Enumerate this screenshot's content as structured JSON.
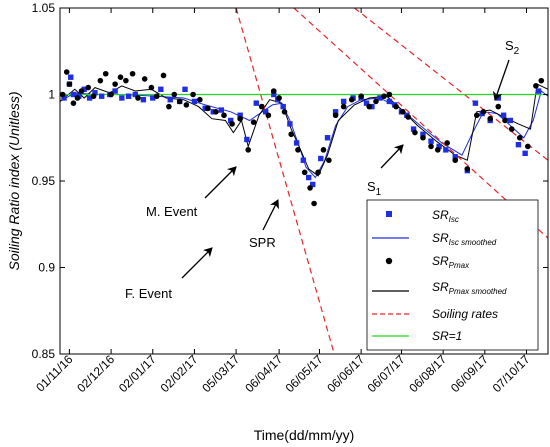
{
  "chart_data": {
    "type": "line",
    "xlabel": "Time(dd/mm/yy)",
    "ylabel": "Soiling Ratio index (Unitless)",
    "xlim": [
      "2016-10-25",
      "2017-10-23"
    ],
    "ylim": [
      0.85,
      1.05
    ],
    "x_ticks": [
      {
        "date": "2016-11-01",
        "label": "01/11/16"
      },
      {
        "date": "2016-12-02",
        "label": "02/12/16"
      },
      {
        "date": "2017-01-02",
        "label": "02/01/17"
      },
      {
        "date": "2017-02-02",
        "label": "02/02/17"
      },
      {
        "date": "2017-03-05",
        "label": "05/03/17"
      },
      {
        "date": "2017-04-06",
        "label": "06/04/17"
      },
      {
        "date": "2017-05-06",
        "label": "06/05/17"
      },
      {
        "date": "2017-06-06",
        "label": "06/06/17"
      },
      {
        "date": "2017-07-06",
        "label": "06/07/17"
      },
      {
        "date": "2017-08-06",
        "label": "06/08/17"
      },
      {
        "date": "2017-09-06",
        "label": "06/09/17"
      },
      {
        "date": "2017-10-07",
        "label": "07/10/17"
      }
    ],
    "y_ticks": [
      {
        "value": 0.85,
        "label": "0.85"
      },
      {
        "value": 0.9,
        "label": "0.9"
      },
      {
        "value": 0.95,
        "label": "0.95"
      },
      {
        "value": 1.0,
        "label": "1"
      },
      {
        "value": 1.05,
        "label": "1.05"
      }
    ],
    "grid": false,
    "legend_position": "bottom-right",
    "legend": [
      {
        "main": "SR",
        "sub": "Isc",
        "marker": "blue-square"
      },
      {
        "main": "SR",
        "sub": "Isc smoothed",
        "marker": "blue-line"
      },
      {
        "main": "SR",
        "sub": "Pmax",
        "marker": "black-dot"
      },
      {
        "main": "SR",
        "sub": "Pmax smoothed",
        "marker": "black-line"
      },
      {
        "main": "Soiling rates",
        "sub": "",
        "marker": "red-dashed-line"
      },
      {
        "main": "SR=1",
        "sub": "",
        "marker": "green-line"
      }
    ],
    "series": [
      {
        "name": "SR_Isc",
        "style": "scatter",
        "color": "#1f2fe0",
        "points": [
          [
            "2016-10-28",
            0.998
          ],
          [
            "2016-11-01",
            1.006
          ],
          [
            "2016-11-02",
            1.01
          ],
          [
            "2016-11-04",
            1.0
          ],
          [
            "2016-11-08",
            0.999
          ],
          [
            "2016-11-12",
            1.003
          ],
          [
            "2016-11-16",
            0.998
          ],
          [
            "2016-11-20",
            1.001
          ],
          [
            "2016-11-25",
            0.999
          ],
          [
            "2016-12-01",
            1.0
          ],
          [
            "2016-12-05",
            1.002
          ],
          [
            "2016-12-10",
            0.998
          ],
          [
            "2016-12-15",
            0.999
          ],
          [
            "2016-12-20",
            1.0
          ],
          [
            "2016-12-26",
            0.997
          ],
          [
            "2017-01-02",
            0.998
          ],
          [
            "2017-01-08",
            1.003
          ],
          [
            "2017-01-15",
            0.997
          ],
          [
            "2017-01-22",
            0.996
          ],
          [
            "2017-01-26",
            1.003
          ],
          [
            "2017-02-02",
            0.996
          ],
          [
            "2017-02-10",
            0.992
          ],
          [
            "2017-02-16",
            0.99
          ],
          [
            "2017-02-22",
            0.991
          ],
          [
            "2017-03-01",
            0.985
          ],
          [
            "2017-03-08",
            0.988
          ],
          [
            "2017-03-13",
            0.974
          ],
          [
            "2017-03-20",
            0.995
          ],
          [
            "2017-03-27",
            0.99
          ],
          [
            "2017-04-02",
            1.0
          ],
          [
            "2017-04-05",
            0.997
          ],
          [
            "2017-04-09",
            0.993
          ],
          [
            "2017-04-14",
            0.983
          ],
          [
            "2017-04-19",
            0.972
          ],
          [
            "2017-04-24",
            0.962
          ],
          [
            "2017-04-28",
            0.952
          ],
          [
            "2017-05-01",
            0.948
          ],
          [
            "2017-05-07",
            0.963
          ],
          [
            "2017-05-12",
            0.975
          ],
          [
            "2017-05-18",
            0.99
          ],
          [
            "2017-05-24",
            0.996
          ],
          [
            "2017-05-31",
            0.998
          ],
          [
            "2017-06-06",
            0.998
          ],
          [
            "2017-06-10",
            0.995
          ],
          [
            "2017-06-14",
            0.993
          ],
          [
            "2017-06-20",
            0.998
          ],
          [
            "2017-06-27",
            0.996
          ],
          [
            "2017-07-01",
            0.994
          ],
          [
            "2017-07-06",
            0.99
          ],
          [
            "2017-07-10",
            0.988
          ],
          [
            "2017-07-15",
            0.98
          ],
          [
            "2017-07-22",
            0.977
          ],
          [
            "2017-07-28",
            0.973
          ],
          [
            "2017-08-03",
            0.97
          ],
          [
            "2017-08-08",
            0.968
          ],
          [
            "2017-08-15",
            0.964
          ],
          [
            "2017-08-24",
            0.956
          ],
          [
            "2017-08-30",
            0.995
          ],
          [
            "2017-09-04",
            0.989
          ],
          [
            "2017-09-10",
            0.985
          ],
          [
            "2017-09-16",
            0.998
          ],
          [
            "2017-09-20",
            0.988
          ],
          [
            "2017-09-25",
            0.985
          ],
          [
            "2017-10-01",
            0.971
          ],
          [
            "2017-10-06",
            0.966
          ],
          [
            "2017-10-16",
            1.002
          ]
        ]
      },
      {
        "name": "SR_Isc smoothed",
        "style": "line",
        "color": "#1f2fe0",
        "points": [
          [
            "2016-10-25",
            0.996
          ],
          [
            "2016-11-05",
            1.001
          ],
          [
            "2016-11-20",
            1.0
          ],
          [
            "2016-12-10",
            1.0
          ],
          [
            "2017-01-05",
            0.999
          ],
          [
            "2017-01-25",
            0.998
          ],
          [
            "2017-02-10",
            0.994
          ],
          [
            "2017-03-01",
            0.99
          ],
          [
            "2017-03-15",
            0.985
          ],
          [
            "2017-04-01",
            0.994
          ],
          [
            "2017-04-08",
            0.995
          ],
          [
            "2017-04-14",
            0.985
          ],
          [
            "2017-04-20",
            0.972
          ],
          [
            "2017-04-26",
            0.958
          ],
          [
            "2017-05-03",
            0.952
          ],
          [
            "2017-05-10",
            0.962
          ],
          [
            "2017-05-18",
            0.982
          ],
          [
            "2017-05-27",
            0.993
          ],
          [
            "2017-06-06",
            0.997
          ],
          [
            "2017-06-20",
            0.998
          ],
          [
            "2017-07-05",
            0.992
          ],
          [
            "2017-07-20",
            0.982
          ],
          [
            "2017-08-05",
            0.972
          ],
          [
            "2017-08-20",
            0.965
          ],
          [
            "2017-08-28",
            0.978
          ],
          [
            "2017-09-05",
            0.99
          ],
          [
            "2017-09-15",
            0.989
          ],
          [
            "2017-09-25",
            0.982
          ],
          [
            "2017-10-05",
            0.975
          ],
          [
            "2017-10-12",
            0.985
          ],
          [
            "2017-10-18",
            1.002
          ],
          [
            "2017-10-23",
            0.999
          ]
        ]
      },
      {
        "name": "SR_Pmax",
        "style": "scatter",
        "color": "#000000",
        "points": [
          [
            "2016-10-27",
            1.0
          ],
          [
            "2016-10-30",
            1.013
          ],
          [
            "2016-11-01",
            1.006
          ],
          [
            "2016-11-04",
            0.995
          ],
          [
            "2016-11-07",
            0.998
          ],
          [
            "2016-11-10",
            1.002
          ],
          [
            "2016-11-15",
            1.004
          ],
          [
            "2016-11-19",
            0.999
          ],
          [
            "2016-11-24",
            1.008
          ],
          [
            "2016-11-28",
            1.012
          ],
          [
            "2016-12-02",
            1.0
          ],
          [
            "2016-12-05",
            1.006
          ],
          [
            "2016-12-09",
            1.01
          ],
          [
            "2016-12-13",
            1.008
          ],
          [
            "2016-12-18",
            1.012
          ],
          [
            "2016-12-22",
            0.998
          ],
          [
            "2016-12-27",
            1.009
          ],
          [
            "2017-01-01",
            1.004
          ],
          [
            "2017-01-05",
            0.999
          ],
          [
            "2017-01-10",
            1.011
          ],
          [
            "2017-01-14",
            0.993
          ],
          [
            "2017-01-18",
            1.0
          ],
          [
            "2017-01-22",
            0.996
          ],
          [
            "2017-01-27",
            0.994
          ],
          [
            "2017-02-01",
            1.0
          ],
          [
            "2017-02-06",
            0.997
          ],
          [
            "2017-02-12",
            0.992
          ],
          [
            "2017-02-18",
            0.99
          ],
          [
            "2017-02-24",
            0.988
          ],
          [
            "2017-03-02",
            0.983
          ],
          [
            "2017-03-08",
            0.986
          ],
          [
            "2017-03-14",
            0.968
          ],
          [
            "2017-03-18",
            0.984
          ],
          [
            "2017-03-24",
            0.993
          ],
          [
            "2017-03-29",
            0.988
          ],
          [
            "2017-04-02",
            1.002
          ],
          [
            "2017-04-06",
            0.998
          ],
          [
            "2017-04-10",
            0.99
          ],
          [
            "2017-04-15",
            0.977
          ],
          [
            "2017-04-20",
            0.968
          ],
          [
            "2017-04-25",
            0.955
          ],
          [
            "2017-04-29",
            0.946
          ],
          [
            "2017-05-02",
            0.937
          ],
          [
            "2017-05-05",
            0.955
          ],
          [
            "2017-05-09",
            0.968
          ],
          [
            "2017-05-13",
            0.962
          ],
          [
            "2017-05-18",
            0.988
          ],
          [
            "2017-05-24",
            0.993
          ],
          [
            "2017-05-30",
            0.997
          ],
          [
            "2017-06-06",
            0.999
          ],
          [
            "2017-06-12",
            0.993
          ],
          [
            "2017-06-17",
            0.996
          ],
          [
            "2017-06-23",
            0.999
          ],
          [
            "2017-06-27",
            1.0
          ],
          [
            "2017-07-02",
            0.993
          ],
          [
            "2017-07-07",
            0.99
          ],
          [
            "2017-07-11",
            0.987
          ],
          [
            "2017-07-16",
            0.978
          ],
          [
            "2017-07-22",
            0.975
          ],
          [
            "2017-07-28",
            0.97
          ],
          [
            "2017-08-02",
            0.968
          ],
          [
            "2017-08-09",
            0.972
          ],
          [
            "2017-08-15",
            0.962
          ],
          [
            "2017-08-24",
            0.957
          ],
          [
            "2017-08-31",
            0.988
          ],
          [
            "2017-09-05",
            0.99
          ],
          [
            "2017-09-10",
            0.986
          ],
          [
            "2017-09-16",
            0.993
          ],
          [
            "2017-09-21",
            0.985
          ],
          [
            "2017-09-26",
            0.98
          ],
          [
            "2017-10-02",
            0.975
          ],
          [
            "2017-10-08",
            0.97
          ],
          [
            "2017-10-14",
            1.005
          ],
          [
            "2017-10-18",
            1.008
          ]
        ]
      },
      {
        "name": "SR_Pmax smoothed",
        "style": "line",
        "color": "#000000",
        "points": [
          [
            "2016-10-25",
            0.996
          ],
          [
            "2016-11-05",
            1.003
          ],
          [
            "2016-11-12",
            0.998
          ],
          [
            "2016-11-20",
            1.004
          ],
          [
            "2016-12-01",
            1.001
          ],
          [
            "2016-12-10",
            1.005
          ],
          [
            "2016-12-20",
            1.002
          ],
          [
            "2017-01-01",
            1.003
          ],
          [
            "2017-01-12",
            0.998
          ],
          [
            "2017-01-25",
            0.997
          ],
          [
            "2017-02-05",
            0.993
          ],
          [
            "2017-02-15",
            0.986
          ],
          [
            "2017-02-25",
            0.985
          ],
          [
            "2017-03-03",
            0.978
          ],
          [
            "2017-03-09",
            0.985
          ],
          [
            "2017-03-14",
            0.97
          ],
          [
            "2017-03-22",
            0.988
          ],
          [
            "2017-03-30",
            0.997
          ],
          [
            "2017-04-08",
            0.995
          ],
          [
            "2017-04-15",
            0.98
          ],
          [
            "2017-04-22",
            0.968
          ],
          [
            "2017-04-28",
            0.957
          ],
          [
            "2017-05-05",
            0.953
          ],
          [
            "2017-05-12",
            0.965
          ],
          [
            "2017-05-20",
            0.985
          ],
          [
            "2017-06-01",
            0.994
          ],
          [
            "2017-06-12",
            0.998
          ],
          [
            "2017-06-25",
            0.999
          ],
          [
            "2017-07-05",
            0.992
          ],
          [
            "2017-07-18",
            0.982
          ],
          [
            "2017-08-01",
            0.973
          ],
          [
            "2017-08-15",
            0.965
          ],
          [
            "2017-08-24",
            0.962
          ],
          [
            "2017-08-31",
            0.99
          ],
          [
            "2017-09-10",
            0.991
          ],
          [
            "2017-09-20",
            0.987
          ],
          [
            "2017-10-01",
            0.983
          ],
          [
            "2017-10-10",
            0.98
          ],
          [
            "2017-10-15",
            1.006
          ],
          [
            "2017-10-23",
            1.003
          ]
        ]
      },
      {
        "name": "Soiling rates",
        "style": "dashed-lines",
        "color": "#e8262a",
        "segments": [
          [
            [
              "2017-03-05",
              1.05
            ],
            [
              "2017-05-17",
              0.85
            ]
          ],
          [
            [
              "2017-04-17",
              1.05
            ],
            [
              "2017-10-23",
              0.917
            ]
          ],
          [
            [
              "2017-06-01",
              1.05
            ],
            [
              "2017-10-23",
              0.962
            ]
          ]
        ]
      },
      {
        "name": "SR=1",
        "style": "hline",
        "color": "#22d622",
        "y": 1.0
      }
    ],
    "annotations": [
      {
        "text": "M. Event",
        "point": [
          "2017-03-13",
          0.965
        ]
      },
      {
        "text": "F. Event",
        "point": [
          "2017-02-20",
          0.922
        ]
      },
      {
        "text": "SPR",
        "point": [
          "2017-04-28",
          0.945
        ]
      },
      {
        "text": "S",
        "sub": "1",
        "point": [
          "2017-07-04",
          0.976
        ]
      },
      {
        "text": "S",
        "sub": "2",
        "point": [
          "2017-09-10",
          0.995
        ]
      }
    ]
  }
}
